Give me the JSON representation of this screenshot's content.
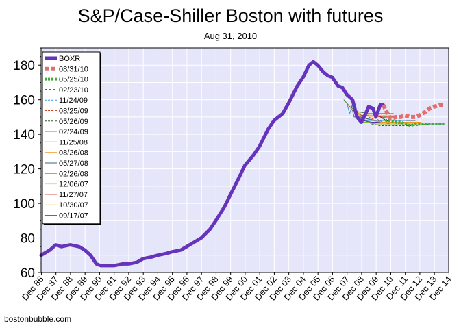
{
  "chart_data": {
    "type": "line",
    "title": "S&P/Case-Shiller Boston with futures",
    "subtitle": "Aug 31, 2010",
    "xlabel": "",
    "ylabel": "",
    "xlim": [
      1986.9,
      2014.9
    ],
    "ylim": [
      60,
      190
    ],
    "y_ticks": [
      60,
      80,
      100,
      120,
      140,
      160,
      180
    ],
    "x_tick_labels": [
      "Dec 86",
      "Dec 87",
      "Dec 88",
      "Dec 89",
      "Dec 90",
      "Dec 91",
      "Dec 92",
      "Dec 93",
      "Dec 94",
      "Dec 95",
      "Dec 96",
      "Dec 97",
      "Dec 98",
      "Dec 99",
      "Dec 00",
      "Dec 01",
      "Dec 02",
      "Dec 03",
      "Dec 04",
      "Dec 05",
      "Dec 06",
      "Dec 07",
      "Dec 08",
      "Dec 09",
      "Dec 10",
      "Dec 11",
      "Dec 12",
      "Dec 13",
      "Dec 14"
    ],
    "x_tick_values": [
      1986.92,
      1987.92,
      1988.92,
      1989.92,
      1990.92,
      1991.92,
      1992.92,
      1993.92,
      1994.92,
      1995.92,
      1996.92,
      1997.92,
      1998.92,
      1999.92,
      2000.92,
      2001.92,
      2002.92,
      2003.92,
      2004.92,
      2005.92,
      2006.92,
      2007.92,
      2008.92,
      2009.92,
      2010.92,
      2011.92,
      2012.92,
      2013.92,
      2014.92
    ],
    "grid": true,
    "legend_position": "top-left",
    "plot_background": "#e6e6fa",
    "series": [
      {
        "name": "BOXR",
        "color": "#6633bb",
        "width": 5,
        "dash": "",
        "x": [
          1986.9,
          1987.5,
          1987.9,
          1988.3,
          1988.9,
          1989.5,
          1989.9,
          1990.3,
          1990.7,
          1991.0,
          1991.5,
          1991.9,
          1992.5,
          1992.9,
          1993.5,
          1993.9,
          1994.5,
          1994.9,
          1995.5,
          1995.9,
          1996.5,
          1996.9,
          1997.5,
          1997.9,
          1998.5,
          1998.9,
          1999.5,
          1999.9,
          2000.5,
          2000.9,
          2001.5,
          2001.9,
          2002.5,
          2002.9,
          2003.5,
          2003.9,
          2004.5,
          2004.9,
          2005.3,
          2005.6,
          2005.9,
          2006.3,
          2006.6,
          2006.9,
          2007.3,
          2007.6,
          2007.9,
          2008.3,
          2008.6,
          2008.9,
          2009.2,
          2009.4,
          2009.7,
          2009.9,
          2010.2,
          2010.4
        ],
        "y": [
          70,
          73,
          76,
          75,
          76,
          75,
          73,
          70,
          65,
          64,
          64,
          64,
          65,
          65,
          66,
          68,
          69,
          70,
          71,
          72,
          73,
          75,
          78,
          80,
          85,
          90,
          98,
          105,
          115,
          122,
          128,
          133,
          143,
          148,
          152,
          158,
          168,
          173,
          180,
          182,
          180,
          176,
          174,
          173,
          168,
          167,
          163,
          160,
          150,
          147,
          152,
          156,
          155,
          150,
          157,
          157
        ]
      },
      {
        "name": "08/31/10",
        "color": "#e07070",
        "width": 6,
        "dash": "6,3",
        "x": [
          2010.4,
          2010.7,
          2010.9,
          2011.3,
          2011.6,
          2011.9,
          2012.3,
          2012.6,
          2012.9,
          2013.3,
          2013.6,
          2013.9,
          2014.3,
          2014.6
        ],
        "y": [
          157,
          152,
          149,
          150,
          150,
          151,
          150,
          150,
          151,
          153,
          155,
          156,
          157,
          157
        ]
      },
      {
        "name": "05/25/10",
        "color": "#44aa33",
        "width": 4,
        "dash": "3,2",
        "x": [
          2010.4,
          2010.6,
          2010.9,
          2011.3,
          2011.6,
          2011.9,
          2012.3,
          2012.6,
          2012.9,
          2013.3,
          2013.6,
          2013.9,
          2014.3,
          2014.6
        ],
        "y": [
          150,
          148,
          148,
          147,
          147,
          146,
          145,
          146,
          146,
          146,
          146,
          146,
          146,
          146
        ]
      },
      {
        "name": "02/23/10",
        "color": "#000000",
        "width": 1,
        "dash": "4,2",
        "x": [
          2009.9,
          2010.2,
          2010.6,
          2010.9,
          2011.3,
          2011.6,
          2011.9,
          2012.3,
          2012.9,
          2013.6,
          2014.6
        ],
        "y": [
          152,
          150,
          148,
          147,
          147,
          146,
          146,
          146,
          146,
          146,
          146
        ]
      },
      {
        "name": "11/24/09",
        "color": "#3399dd",
        "width": 1,
        "dash": "3,2",
        "x": [
          2009.6,
          2009.9,
          2010.4,
          2010.9,
          2011.4,
          2011.9,
          2012.6,
          2013.6,
          2014.6
        ],
        "y": [
          151,
          149,
          147,
          146,
          146,
          146,
          146,
          146,
          146
        ]
      },
      {
        "name": "08/25/09",
        "color": "#dd4422",
        "width": 1,
        "dash": "3,2",
        "x": [
          2009.4,
          2009.9,
          2010.4,
          2010.9,
          2011.4,
          2011.9,
          2012.6,
          2013.6
        ],
        "y": [
          150,
          148,
          147,
          146,
          146,
          146,
          146,
          146
        ]
      },
      {
        "name": "05/26/09",
        "color": "#226622",
        "width": 1,
        "dash": "3,2",
        "x": [
          2009.2,
          2009.6,
          2010.2,
          2010.9,
          2011.6,
          2012.6,
          2013.6
        ],
        "y": [
          148,
          146,
          145,
          145,
          145,
          145,
          146
        ]
      },
      {
        "name": "02/24/09",
        "color": "#88bb22",
        "width": 1,
        "dash": "",
        "x": [
          2008.9,
          2009.3,
          2009.9,
          2010.6,
          2011.4,
          2012.4,
          2013.4
        ],
        "y": [
          147,
          147,
          146,
          146,
          146,
          146,
          146
        ]
      },
      {
        "name": "11/25/08",
        "color": "#5533aa",
        "width": 1,
        "dash": "",
        "x": [
          2008.6,
          2009.0,
          2009.6,
          2010.3,
          2011.0,
          2012.0,
          2013.0
        ],
        "y": [
          150,
          148,
          147,
          147,
          147,
          147,
          147
        ]
      },
      {
        "name": "08/26/08",
        "color": "#ee9922",
        "width": 1,
        "dash": "",
        "x": [
          2008.4,
          2008.9,
          2009.6,
          2010.3,
          2011.0,
          2012.0,
          2013.0
        ],
        "y": [
          153,
          150,
          148,
          147,
          147,
          147,
          147
        ]
      },
      {
        "name": "05/27/08",
        "color": "#336688",
        "width": 1,
        "dash": "",
        "x": [
          2008.2,
          2008.4,
          2008.8,
          2009.3,
          2009.9,
          2010.6,
          2011.6,
          2012.6
        ],
        "y": [
          157,
          150,
          150,
          149,
          148,
          148,
          148,
          148
        ]
      },
      {
        "name": "02/26/08",
        "color": "#3399dd",
        "width": 1,
        "dash": "",
        "x": [
          2007.9,
          2008.1,
          2008.3,
          2008.6,
          2008.9,
          2009.3,
          2009.9,
          2010.9,
          2011.9
        ],
        "y": [
          158,
          152,
          157,
          151,
          149,
          148,
          148,
          148,
          148
        ]
      },
      {
        "name": "12/06/07",
        "color": "#ffcc88",
        "width": 1,
        "dash": "",
        "x": [
          2007.9,
          2008.3,
          2008.9,
          2009.6,
          2010.3,
          2011.3
        ],
        "y": [
          158,
          153,
          151,
          150,
          150,
          150
        ]
      },
      {
        "name": "11/27/07",
        "color": "#cc2222",
        "width": 1,
        "dash": "",
        "x": [
          2007.9,
          2008.3,
          2008.9,
          2009.6,
          2010.3,
          2011.3
        ],
        "y": [
          158,
          154,
          151,
          151,
          150,
          150
        ]
      },
      {
        "name": "10/30/07",
        "color": "#eecc44",
        "width": 1,
        "dash": "",
        "x": [
          2007.8,
          2008.2,
          2008.8,
          2009.5,
          2010.2,
          2011.2
        ],
        "y": [
          159,
          155,
          152,
          151,
          151,
          151
        ]
      },
      {
        "name": "09/17/07",
        "color": "#448833",
        "width": 1,
        "dash": "",
        "x": [
          2007.7,
          2008.1,
          2008.7,
          2009.4,
          2010.1,
          2011.1
        ],
        "y": [
          160,
          156,
          153,
          152,
          152,
          152
        ]
      }
    ]
  },
  "footer": {
    "credit": "bostonbubble.com"
  }
}
